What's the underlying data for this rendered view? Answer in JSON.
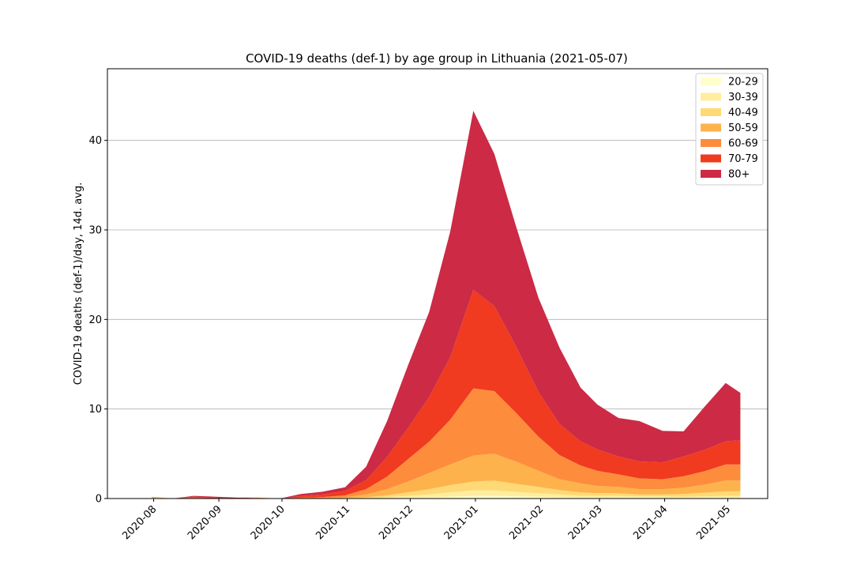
{
  "chart_data": {
    "type": "area",
    "stacked": true,
    "title": "COVID-19 deaths (def-1) by age group in Lithuania (2021-05-07)",
    "xlabel": "",
    "ylabel": "COVID-19 deaths (def-1)/day, 14d. avg.",
    "ylim": [
      0,
      48
    ],
    "xlim": [
      "2020-07-10",
      "2021-05-20"
    ],
    "grid": "horizontal",
    "legend_position": "top-right",
    "x_ticks": [
      "2020-08",
      "2020-09",
      "2020-10",
      "2020-11",
      "2020-12",
      "2021-01",
      "2021-02",
      "2021-03",
      "2021-04",
      "2021-05"
    ],
    "y_ticks": [
      0,
      10,
      20,
      30,
      40
    ],
    "x": [
      "2020-07-31",
      "2020-08-10",
      "2020-08-20",
      "2020-08-31",
      "2020-09-10",
      "2020-09-20",
      "2020-09-30",
      "2020-10-10",
      "2020-10-20",
      "2020-10-31",
      "2020-11-10",
      "2020-11-20",
      "2020-11-30",
      "2020-12-10",
      "2020-12-20",
      "2020-12-31",
      "2021-01-10",
      "2021-01-20",
      "2021-01-31",
      "2021-02-10",
      "2021-02-20",
      "2021-02-28",
      "2021-03-10",
      "2021-03-20",
      "2021-03-31",
      "2021-04-10",
      "2021-04-20",
      "2021-04-30",
      "2021-05-07"
    ],
    "series": [
      {
        "name": "20-29",
        "color": "#ffffcc",
        "values": [
          0,
          0,
          0,
          0,
          0,
          0,
          0,
          0,
          0,
          0,
          0,
          0.05,
          0.1,
          0.15,
          0.2,
          0.3,
          0.3,
          0.25,
          0.2,
          0.15,
          0.1,
          0.1,
          0.1,
          0.1,
          0.1,
          0.1,
          0.1,
          0.1,
          0.1
        ]
      },
      {
        "name": "30-39",
        "color": "#ffeda0",
        "values": [
          0,
          0,
          0,
          0,
          0,
          0,
          0,
          0,
          0,
          0,
          0.05,
          0.1,
          0.2,
          0.3,
          0.5,
          0.6,
          0.6,
          0.5,
          0.4,
          0.3,
          0.2,
          0.2,
          0.2,
          0.15,
          0.15,
          0.1,
          0.15,
          0.2,
          0.2
        ]
      },
      {
        "name": "40-49",
        "color": "#fed976",
        "values": [
          0.1,
          0,
          0,
          0,
          0,
          0,
          0,
          0,
          0,
          0.05,
          0.1,
          0.2,
          0.4,
          0.6,
          0.8,
          1.0,
          1.1,
          0.9,
          0.7,
          0.5,
          0.4,
          0.3,
          0.3,
          0.2,
          0.2,
          0.3,
          0.4,
          0.5,
          0.5
        ]
      },
      {
        "name": "50-59",
        "color": "#feb24c",
        "values": [
          0.1,
          0,
          0,
          0,
          0,
          0,
          0,
          0,
          0.05,
          0.1,
          0.3,
          0.7,
          1.2,
          1.8,
          2.3,
          2.9,
          3.0,
          2.5,
          1.8,
          1.2,
          1.0,
          0.8,
          0.7,
          0.6,
          0.6,
          0.7,
          0.9,
          1.2,
          1.2
        ]
      },
      {
        "name": "60-69",
        "color": "#fd8d3c",
        "values": [
          0,
          0,
          0.1,
          0,
          0,
          0.1,
          0,
          0.1,
          0.1,
          0.2,
          0.6,
          1.4,
          2.5,
          3.5,
          5.0,
          7.5,
          7.0,
          5.5,
          3.8,
          2.7,
          2.0,
          1.7,
          1.4,
          1.2,
          1.1,
          1.3,
          1.5,
          1.8,
          1.8
        ]
      },
      {
        "name": "70-79",
        "color": "#f03b20",
        "values": [
          0,
          0,
          0.1,
          0.1,
          0,
          0,
          0,
          0.2,
          0.3,
          0.5,
          1.0,
          2.2,
          3.5,
          5.0,
          7.0,
          11.0,
          9.5,
          7.5,
          5.0,
          3.5,
          2.7,
          2.4,
          2.0,
          1.9,
          1.9,
          2.2,
          2.4,
          2.6,
          2.7
        ]
      },
      {
        "name": "80+",
        "color": "#cc2a45",
        "values": [
          0,
          0,
          0.1,
          0.1,
          0.1,
          0,
          0,
          0.2,
          0.3,
          0.4,
          1.5,
          4.0,
          7.0,
          9.5,
          14.0,
          20.0,
          17.0,
          13.5,
          10.5,
          8.5,
          6.0,
          5.0,
          4.3,
          4.5,
          3.5,
          2.8,
          4.8,
          6.5,
          5.3
        ]
      }
    ]
  }
}
